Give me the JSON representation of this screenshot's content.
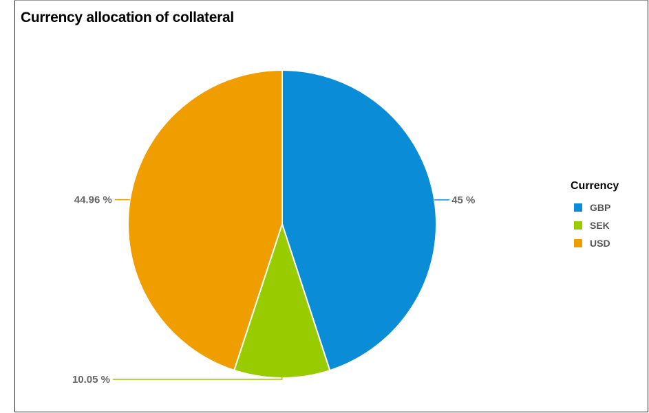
{
  "chart_data": {
    "type": "pie",
    "title": "Currency allocation of collateral",
    "legend_title": "Currency",
    "legend_position": "right",
    "slices": [
      {
        "label": "GBP",
        "value": 45,
        "display": "45 %",
        "color": "#0a8dd6"
      },
      {
        "label": "SEK",
        "value": 10.05,
        "display": "10.05 %",
        "color": "#99cc00"
      },
      {
        "label": "USD",
        "value": 44.96,
        "display": "44.96 %",
        "color": "#f09d00"
      }
    ]
  }
}
